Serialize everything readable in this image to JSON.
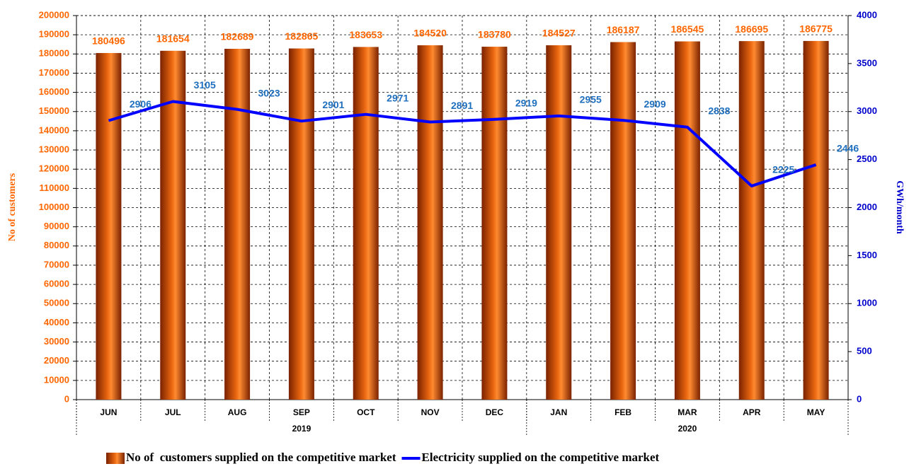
{
  "chart_data": {
    "type": "bar_line",
    "ylabel": "No of customers",
    "y2label": "GWh/month",
    "groups": [
      {
        "label": "2019",
        "categories": [
          "JUN",
          "JUL",
          "AUG",
          "SEP",
          "OCT",
          "NOV",
          "DEC"
        ]
      },
      {
        "label": "2020",
        "categories": [
          "JAN",
          "FEB",
          "MAR",
          "APR",
          "MAY"
        ]
      }
    ],
    "series": [
      {
        "name": "No of  customers supplied on the competitive market",
        "type": "bar",
        "color": "#e8650f",
        "values": [
          180496,
          181654,
          182689,
          182865,
          183653,
          184520,
          183780,
          184527,
          186187,
          186545,
          186695,
          186775
        ]
      },
      {
        "name": "Electricity supplied on the competitive market",
        "type": "line",
        "axis": "y2",
        "color": "#0000ff",
        "values": [
          2906,
          3105,
          3023,
          2901,
          2971,
          2891,
          2919,
          2955,
          2909,
          2838,
          2225,
          2446
        ]
      }
    ],
    "ylim": [
      0,
      200000
    ],
    "yticks": [
      0,
      10000,
      20000,
      30000,
      40000,
      50000,
      60000,
      70000,
      80000,
      90000,
      100000,
      110000,
      120000,
      130000,
      140000,
      150000,
      160000,
      170000,
      180000,
      190000,
      200000
    ],
    "y2lim": [
      0,
      4000
    ],
    "y2ticks": [
      0,
      500,
      1000,
      1500,
      2000,
      2500,
      3000,
      3500,
      4000
    ],
    "grid": true,
    "legend": "bottom"
  }
}
